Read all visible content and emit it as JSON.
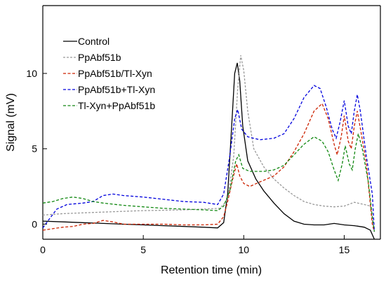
{
  "chart_data": {
    "type": "line",
    "xlabel": "Retention time (min)",
    "ylabel": "Signal (mV)",
    "xlim": [
      0,
      16.8
    ],
    "ylim": [
      -1,
      14.5
    ],
    "xticks": [
      0,
      5,
      10,
      15
    ],
    "yticks": [
      0,
      5,
      10
    ],
    "legend_position": "top-left",
    "series": [
      {
        "name": "Control",
        "color": "#000000",
        "dash": "solid",
        "points": [
          [
            0,
            0.2
          ],
          [
            1,
            0.15
          ],
          [
            2,
            0.1
          ],
          [
            3,
            0.05
          ],
          [
            4,
            0.0
          ],
          [
            5,
            -0.05
          ],
          [
            6,
            -0.1
          ],
          [
            7,
            -0.15
          ],
          [
            8,
            -0.2
          ],
          [
            8.7,
            -0.25
          ],
          [
            9.0,
            0.1
          ],
          [
            9.2,
            2.0
          ],
          [
            9.4,
            6.5
          ],
          [
            9.55,
            10.0
          ],
          [
            9.68,
            10.7
          ],
          [
            9.8,
            9.5
          ],
          [
            9.95,
            6.5
          ],
          [
            10.2,
            4.2
          ],
          [
            10.6,
            3.0
          ],
          [
            11,
            2.2
          ],
          [
            11.5,
            1.4
          ],
          [
            12,
            0.7
          ],
          [
            12.5,
            0.2
          ],
          [
            13,
            0.0
          ],
          [
            13.5,
            -0.05
          ],
          [
            14,
            -0.05
          ],
          [
            14.5,
            0.05
          ],
          [
            15,
            -0.05
          ],
          [
            15.5,
            -0.1
          ],
          [
            16,
            -0.2
          ],
          [
            16.3,
            -0.4
          ],
          [
            16.5,
            -1.0
          ]
        ]
      },
      {
        "name": "PpAbf51b",
        "color": "#999999",
        "dash": "short",
        "points": [
          [
            0,
            0.6
          ],
          [
            1,
            0.7
          ],
          [
            2,
            0.75
          ],
          [
            3,
            0.8
          ],
          [
            4,
            0.85
          ],
          [
            5,
            0.9
          ],
          [
            6,
            0.92
          ],
          [
            7,
            0.95
          ],
          [
            8,
            1.0
          ],
          [
            8.8,
            1.05
          ],
          [
            9.2,
            1.6
          ],
          [
            9.5,
            4.5
          ],
          [
            9.7,
            9.0
          ],
          [
            9.85,
            11.2
          ],
          [
            10.0,
            10.2
          ],
          [
            10.2,
            7.5
          ],
          [
            10.5,
            5.0
          ],
          [
            11,
            3.8
          ],
          [
            11.5,
            3.0
          ],
          [
            12,
            2.4
          ],
          [
            12.5,
            1.9
          ],
          [
            13,
            1.5
          ],
          [
            13.5,
            1.3
          ],
          [
            14,
            1.2
          ],
          [
            14.5,
            1.15
          ],
          [
            15,
            1.2
          ],
          [
            15.5,
            1.45
          ],
          [
            16,
            1.3
          ],
          [
            16.3,
            1.2
          ],
          [
            16.5,
            -0.5
          ]
        ]
      },
      {
        "name": "PpAbf51b/Tl-Xyn",
        "color": "#cc2200",
        "dash": "dashed",
        "points": [
          [
            0,
            -0.4
          ],
          [
            0.5,
            -0.3
          ],
          [
            1,
            -0.2
          ],
          [
            1.5,
            -0.15
          ],
          [
            2,
            0.0
          ],
          [
            2.5,
            0.05
          ],
          [
            3,
            0.25
          ],
          [
            3.5,
            0.15
          ],
          [
            4,
            0.0
          ],
          [
            5,
            0.0
          ],
          [
            6,
            0.0
          ],
          [
            7,
            -0.05
          ],
          [
            8,
            -0.05
          ],
          [
            8.7,
            0.0
          ],
          [
            9.0,
            0.5
          ],
          [
            9.2,
            1.5
          ],
          [
            9.45,
            3.0
          ],
          [
            9.65,
            4.0
          ],
          [
            9.8,
            3.2
          ],
          [
            10,
            2.7
          ],
          [
            10.3,
            2.5
          ],
          [
            10.8,
            2.8
          ],
          [
            11.5,
            3.2
          ],
          [
            12,
            3.8
          ],
          [
            12.5,
            4.8
          ],
          [
            13,
            6.0
          ],
          [
            13.5,
            7.5
          ],
          [
            13.9,
            8.0
          ],
          [
            14.2,
            7.0
          ],
          [
            14.5,
            5.3
          ],
          [
            14.65,
            4.6
          ],
          [
            14.85,
            5.8
          ],
          [
            15.0,
            7.2
          ],
          [
            15.2,
            5.5
          ],
          [
            15.35,
            5.0
          ],
          [
            15.5,
            6.5
          ],
          [
            15.65,
            7.5
          ],
          [
            15.85,
            6.0
          ],
          [
            16.1,
            4.0
          ],
          [
            16.4,
            0.0
          ],
          [
            16.5,
            -0.5
          ]
        ]
      },
      {
        "name": "PpAbf51b+Tl-Xyn",
        "color": "#0000dd",
        "dash": "dashed",
        "points": [
          [
            0,
            -0.25
          ],
          [
            0.3,
            0.3
          ],
          [
            0.7,
            1.0
          ],
          [
            1.2,
            1.3
          ],
          [
            2,
            1.4
          ],
          [
            2.5,
            1.5
          ],
          [
            3,
            1.9
          ],
          [
            3.5,
            2.0
          ],
          [
            4,
            1.9
          ],
          [
            5,
            1.8
          ],
          [
            6,
            1.65
          ],
          [
            7,
            1.5
          ],
          [
            8,
            1.45
          ],
          [
            8.7,
            1.3
          ],
          [
            9.0,
            2.0
          ],
          [
            9.3,
            4.5
          ],
          [
            9.55,
            7.0
          ],
          [
            9.7,
            7.6
          ],
          [
            9.9,
            6.3
          ],
          [
            10.2,
            5.8
          ],
          [
            10.8,
            5.6
          ],
          [
            11.5,
            5.7
          ],
          [
            12,
            6.0
          ],
          [
            12.5,
            7.0
          ],
          [
            13,
            8.4
          ],
          [
            13.5,
            9.2
          ],
          [
            13.8,
            9.0
          ],
          [
            14.1,
            7.8
          ],
          [
            14.4,
            6.3
          ],
          [
            14.6,
            5.7
          ],
          [
            14.8,
            6.8
          ],
          [
            15.0,
            8.2
          ],
          [
            15.2,
            6.5
          ],
          [
            15.35,
            6.0
          ],
          [
            15.5,
            7.5
          ],
          [
            15.65,
            8.6
          ],
          [
            15.8,
            7.5
          ],
          [
            16.1,
            4.5
          ],
          [
            16.4,
            2.0
          ],
          [
            16.5,
            -0.5
          ]
        ]
      },
      {
        "name": "Tl-Xyn+PpAbf51b",
        "color": "#118811",
        "dash": "dashed",
        "points": [
          [
            0,
            1.4
          ],
          [
            0.5,
            1.5
          ],
          [
            1,
            1.7
          ],
          [
            1.5,
            1.8
          ],
          [
            2,
            1.7
          ],
          [
            2.5,
            1.5
          ],
          [
            3,
            1.4
          ],
          [
            4,
            1.25
          ],
          [
            5,
            1.15
          ],
          [
            6,
            1.05
          ],
          [
            7,
            1.0
          ],
          [
            8,
            0.95
          ],
          [
            8.7,
            0.9
          ],
          [
            9.0,
            1.2
          ],
          [
            9.3,
            2.2
          ],
          [
            9.6,
            4.2
          ],
          [
            9.75,
            4.6
          ],
          [
            9.95,
            3.7
          ],
          [
            10.3,
            3.5
          ],
          [
            11,
            3.5
          ],
          [
            11.5,
            3.6
          ],
          [
            12,
            3.9
          ],
          [
            12.5,
            4.6
          ],
          [
            13,
            5.3
          ],
          [
            13.5,
            5.8
          ],
          [
            13.9,
            5.5
          ],
          [
            14.2,
            4.8
          ],
          [
            14.5,
            3.6
          ],
          [
            14.7,
            2.9
          ],
          [
            14.9,
            4.0
          ],
          [
            15.05,
            5.2
          ],
          [
            15.25,
            4.0
          ],
          [
            15.4,
            3.6
          ],
          [
            15.55,
            5.0
          ],
          [
            15.7,
            6.0
          ],
          [
            15.9,
            5.0
          ],
          [
            16.2,
            2.8
          ],
          [
            16.4,
            0.5
          ],
          [
            16.5,
            -0.5
          ]
        ]
      }
    ]
  }
}
